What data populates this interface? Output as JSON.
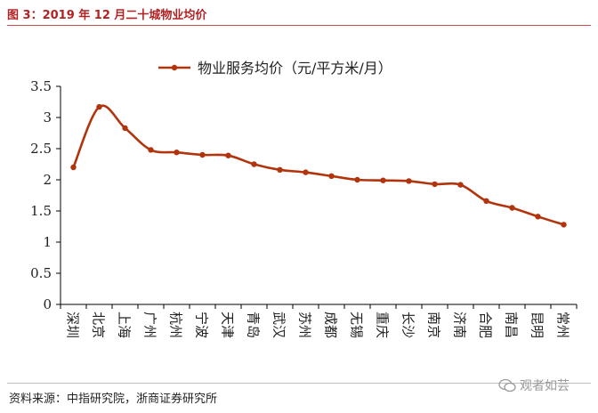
{
  "header": {
    "figure_title": "图 3：2019 年 12 月二十城物业均价"
  },
  "footer": {
    "source": "资料来源：中指研究院，浙商证券研究所",
    "watermark": "观者如芸"
  },
  "colors": {
    "series": "#b2340d",
    "title": "#b22222"
  },
  "chart_data": {
    "type": "line",
    "title": "",
    "xlabel": "",
    "ylabel": "",
    "ylim": [
      0,
      3.5
    ],
    "yticks": [
      "0",
      "0.5",
      "1",
      "1.5",
      "2",
      "2.5",
      "3",
      "3.5"
    ],
    "grid": false,
    "legend_position": "top-center",
    "categories": [
      "深圳",
      "北京",
      "上海",
      "广州",
      "杭州",
      "宁波",
      "天津",
      "青岛",
      "武汉",
      "苏州",
      "成都",
      "无锡",
      "重庆",
      "长沙",
      "南京",
      "济南",
      "合肥",
      "南昌",
      "昆明",
      "常州"
    ],
    "series": [
      {
        "name": "物业服务均价（元/平方米/月）",
        "values": [
          2.2,
          3.17,
          2.83,
          2.48,
          2.44,
          2.4,
          2.39,
          2.25,
          2.16,
          2.12,
          2.06,
          2.0,
          1.99,
          1.98,
          1.93,
          1.92,
          1.66,
          1.55,
          1.41,
          1.28
        ]
      }
    ]
  }
}
